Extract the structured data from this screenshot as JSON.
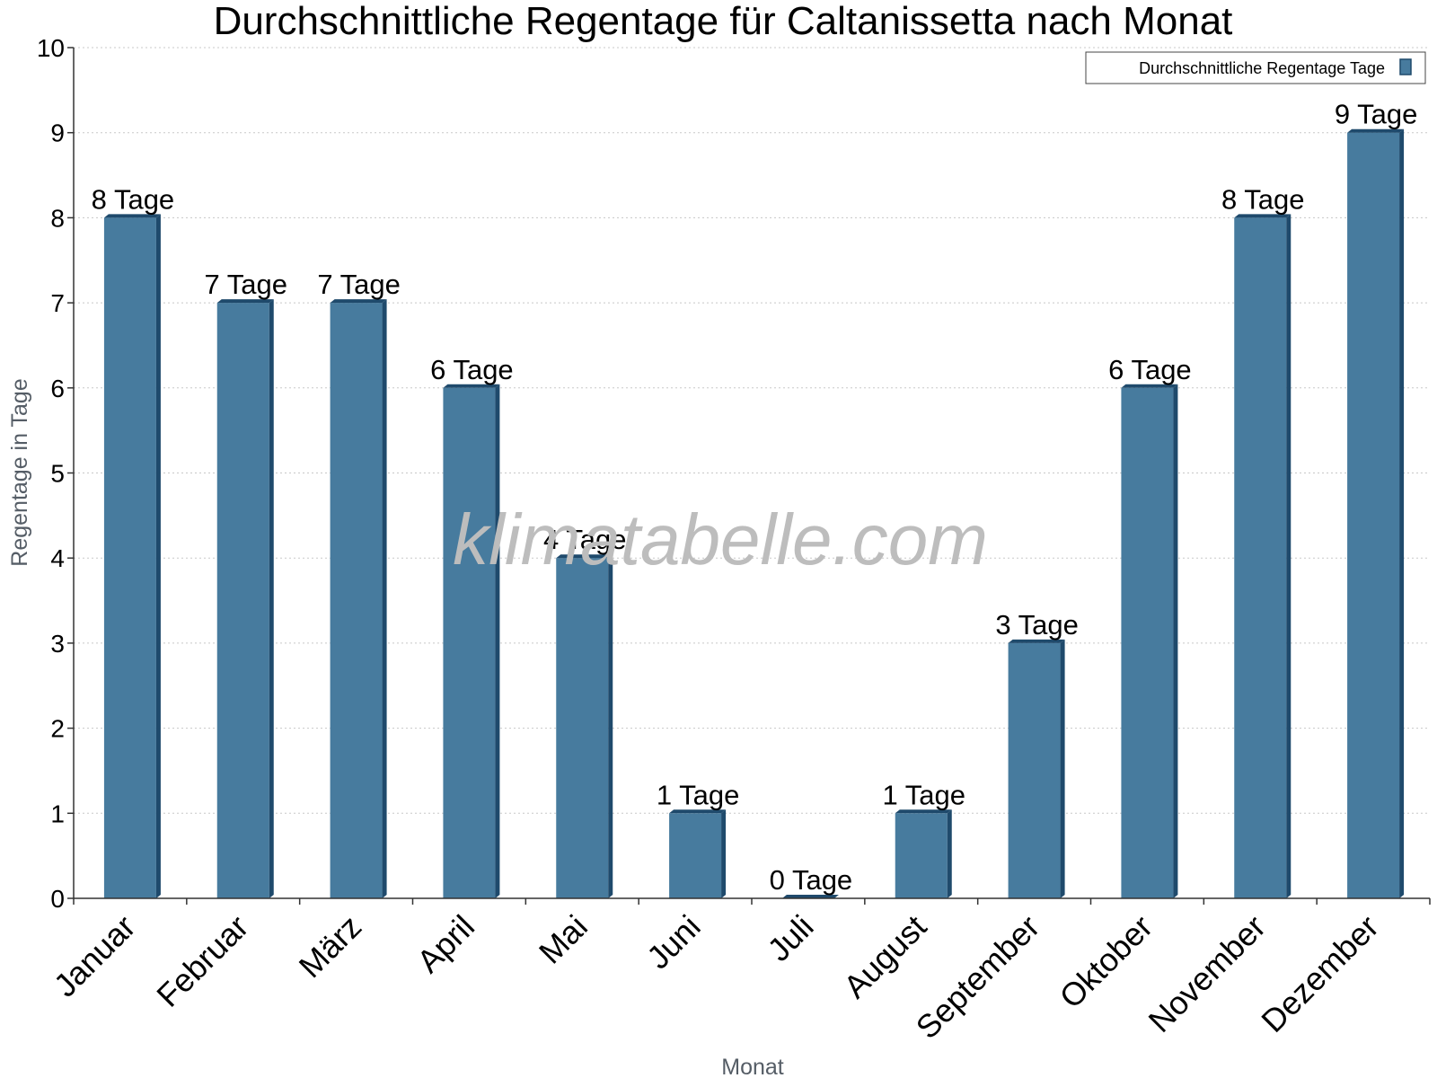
{
  "chart_data": {
    "type": "bar",
    "title": "Durchschnittliche Regentage für Caltanissetta nach Monat",
    "xlabel": "Monat",
    "ylabel": "Regentage in Tage",
    "categories": [
      "Januar",
      "Februar",
      "März",
      "April",
      "Mai",
      "Juni",
      "Juli",
      "August",
      "September",
      "Oktober",
      "November",
      "Dezember"
    ],
    "series": [
      {
        "name": "Durchschnittliche Regentage Tage",
        "values": [
          8,
          7,
          7,
          6,
          4,
          1,
          0,
          1,
          3,
          6,
          8,
          9
        ],
        "labels": [
          "8 Tage",
          "7 Tage",
          "7 Tage",
          "6 Tage",
          "4 Tage",
          "1 Tage",
          "0 Tage",
          "1 Tage",
          "3 Tage",
          "6 Tage",
          "8 Tage",
          "9 Tage"
        ]
      }
    ],
    "ylim": [
      0,
      10
    ],
    "yticks": [
      "0",
      "1",
      "2",
      "3",
      "4",
      "5",
      "6",
      "7",
      "8",
      "9",
      "10"
    ],
    "grid": true,
    "legend_position": "top-right",
    "colors": {
      "bar": "#477b9e",
      "bar_side": "#1f4a6c",
      "bar_top": "#1f4a6c",
      "grid": "#c8c8c8"
    }
  },
  "watermark": "klimatabelle.com"
}
